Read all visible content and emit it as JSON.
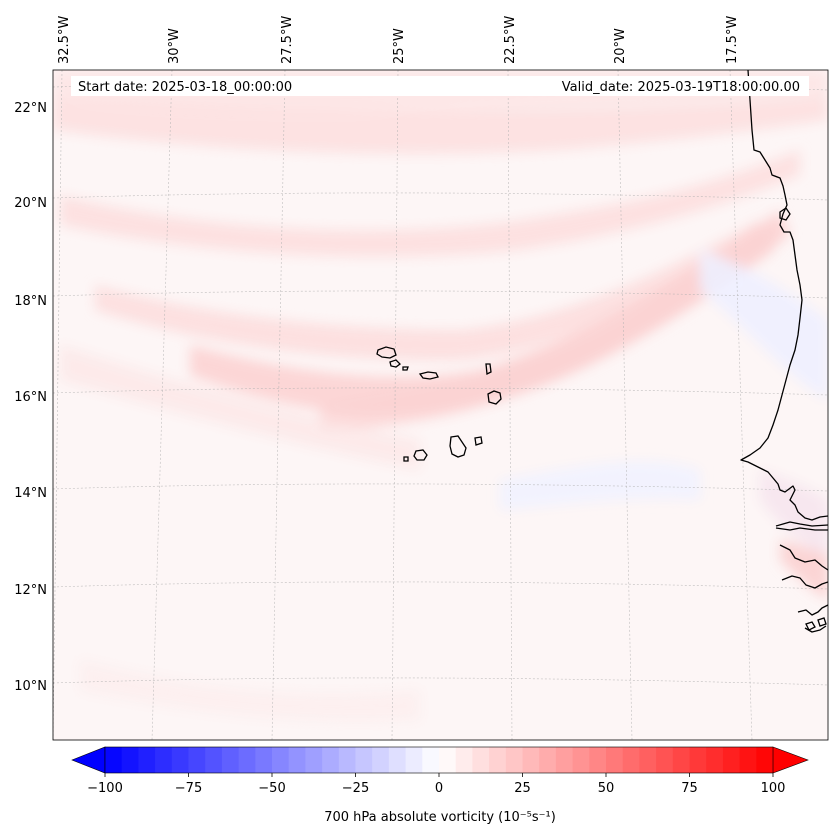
{
  "header": {
    "start_label": "Start date: 2025-03-18_00:00:00",
    "valid_label": "Valid_date: 2025-03-19T18:00:00.00"
  },
  "lon_labels": [
    "32.5°W",
    "30°W",
    "27.5°W",
    "25°W",
    "22.5°W",
    "20°W",
    "17.5°W"
  ],
  "lat_labels": [
    "22°N",
    "20°N",
    "18°N",
    "16°N",
    "14°N",
    "12°N",
    "10°N"
  ],
  "colorbar": {
    "ticks": [
      "−100",
      "−75",
      "−50",
      "−25",
      "0",
      "25",
      "50",
      "75",
      "100"
    ],
    "label": "700 hPa absolute vorticity (10⁻⁵s⁻¹)",
    "min": -100,
    "max": 100,
    "low_color": "#0000ff",
    "high_color": "#ff0000"
  }
}
